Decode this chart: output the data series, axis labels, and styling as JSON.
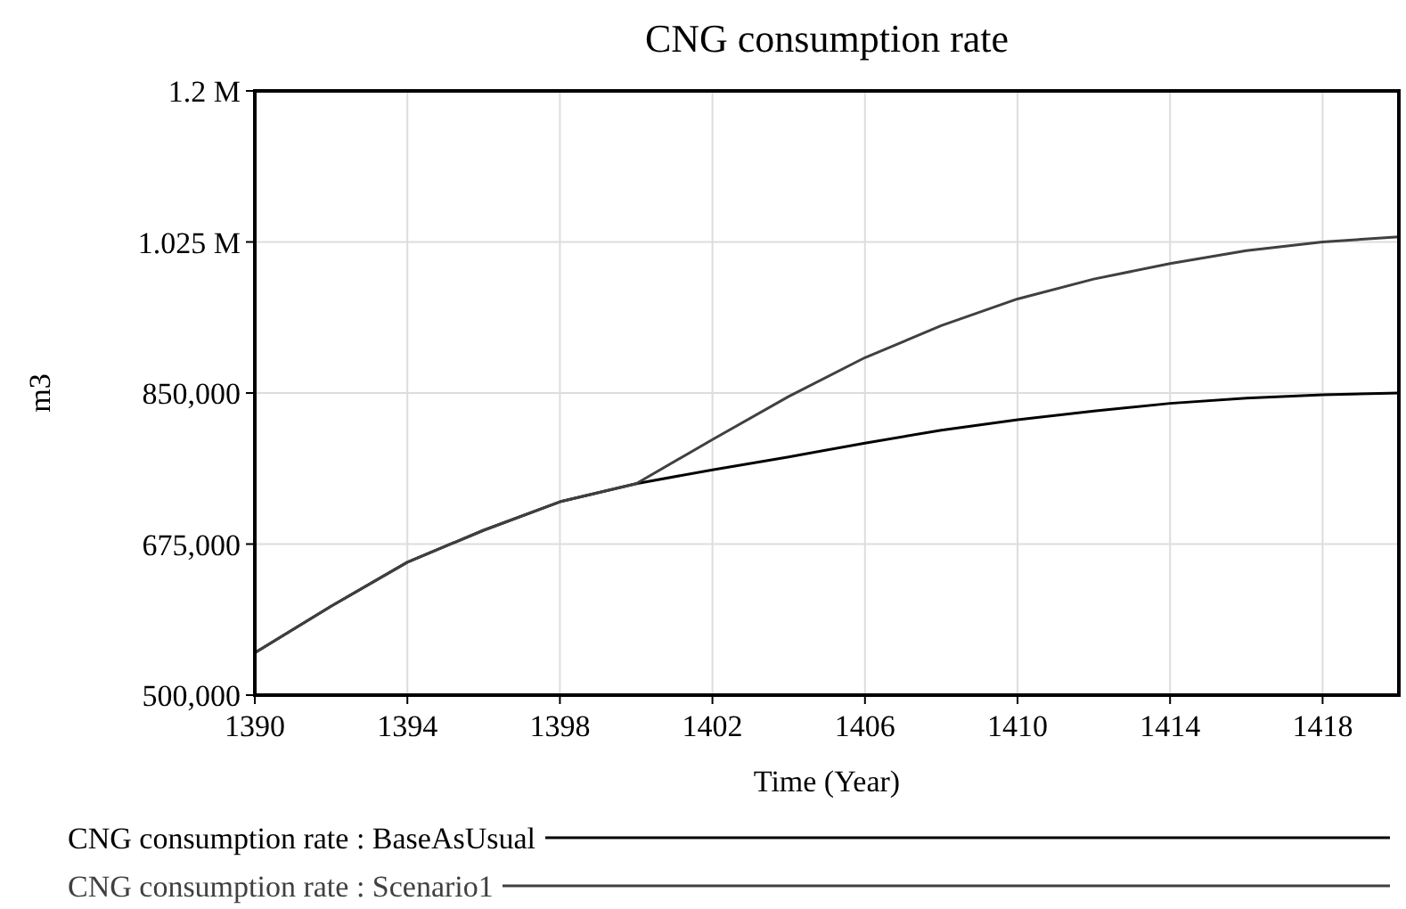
{
  "chart_data": {
    "type": "line",
    "title": "CNG consumption rate",
    "xlabel": "Time (Year)",
    "ylabel": "m3",
    "x": [
      1390,
      1392,
      1394,
      1396,
      1398,
      1400,
      1402,
      1404,
      1406,
      1408,
      1410,
      1412,
      1414,
      1416,
      1418,
      1420
    ],
    "series": [
      {
        "name": "CNG consumption rate : BaseAsUsual",
        "color": "#000000",
        "values": [
          549000,
          603000,
          654000,
          691000,
          724000,
          745000,
          761000,
          776000,
          792000,
          807000,
          819000,
          829000,
          838000,
          844000,
          848000,
          850000
        ]
      },
      {
        "name": "CNG consumption rate : Scenario1",
        "color": "#404040",
        "values": [
          549000,
          603000,
          654000,
          691000,
          724000,
          745000,
          796000,
          846000,
          891000,
          928000,
          959000,
          982000,
          1000000,
          1015000,
          1025000,
          1031000
        ]
      }
    ],
    "xlim": [
      1390,
      1420
    ],
    "xticks": [
      1390,
      1394,
      1398,
      1402,
      1406,
      1410,
      1414,
      1418
    ],
    "ylim": [
      500000,
      1200000
    ],
    "yticks": [
      {
        "value": 500000,
        "label": "500,000"
      },
      {
        "value": 675000,
        "label": "675,000"
      },
      {
        "value": 850000,
        "label": "850,000"
      },
      {
        "value": 1025000,
        "label": "1.025 M"
      },
      {
        "value": 1200000,
        "label": "1.2 M"
      }
    ],
    "grid": true,
    "legend": "bottom",
    "marker": "none",
    "line_style": "solid"
  }
}
